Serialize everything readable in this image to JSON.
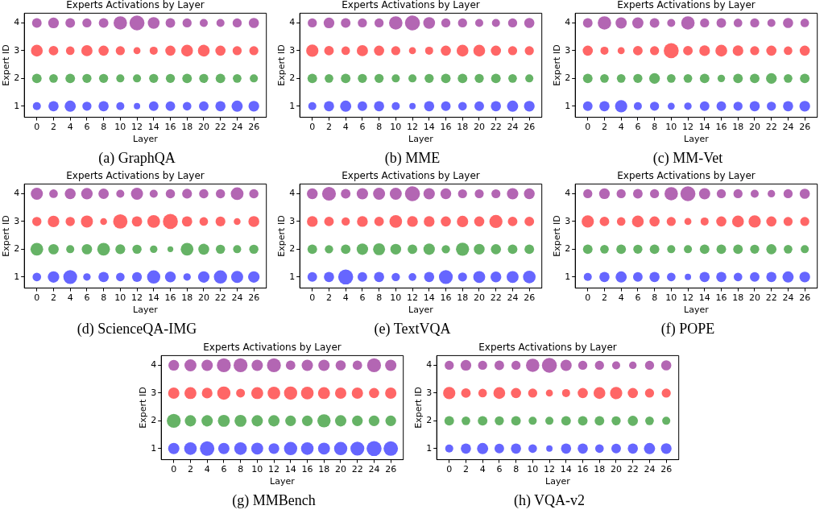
{
  "chart_data": [
    {
      "type": "bubble",
      "title": "Experts Activations by Layer",
      "xlabel": "Layer",
      "ylabel": "Expert ID",
      "annotations": [
        "(a) GraphQA"
      ],
      "x": [
        0,
        2,
        4,
        6,
        8,
        10,
        12,
        14,
        16,
        18,
        20,
        22,
        24,
        26
      ],
      "xlim": [
        -1.5,
        27.5
      ],
      "xticks": [
        0,
        2,
        4,
        6,
        8,
        10,
        12,
        14,
        16,
        18,
        20,
        22,
        24,
        26
      ],
      "ylim": [
        0.6,
        4.35
      ],
      "yticks": [
        1,
        2,
        3,
        4
      ],
      "grid": false,
      "legend": false,
      "series": [
        {
          "color": "#6666ff",
          "values": [
            1,
            1,
            1,
            1,
            1,
            1,
            1,
            1,
            1,
            1,
            1,
            1,
            1,
            1
          ],
          "sizes": [
            0.29,
            0.46,
            0.56,
            0.37,
            0.46,
            0.29,
            0.18,
            0.41,
            0.41,
            0.33,
            0.41,
            0.46,
            0.56,
            0.51
          ]
        },
        {
          "color": "#66b366",
          "values": [
            2,
            2,
            2,
            2,
            2,
            2,
            2,
            2,
            2,
            2,
            2,
            2,
            2,
            2
          ],
          "sizes": [
            0.41,
            0.33,
            0.41,
            0.37,
            0.37,
            0.29,
            0.29,
            0.37,
            0.37,
            0.41,
            0.37,
            0.41,
            0.33,
            0.29
          ]
        },
        {
          "color": "#ff6666",
          "values": [
            3,
            3,
            3,
            3,
            3,
            3,
            3,
            3,
            3,
            3,
            3,
            3,
            3,
            3
          ],
          "sizes": [
            0.62,
            0.41,
            0.33,
            0.56,
            0.46,
            0.37,
            0.22,
            0.29,
            0.46,
            0.62,
            0.62,
            0.46,
            0.37,
            0.37
          ]
        },
        {
          "color": "#b366b3",
          "values": [
            4,
            4,
            4,
            4,
            4,
            4,
            4,
            4,
            4,
            4,
            4,
            4,
            4,
            4
          ],
          "sizes": [
            0.41,
            0.51,
            0.41,
            0.37,
            0.41,
            0.8,
            1,
            0.62,
            0.41,
            0.37,
            0.29,
            0.29,
            0.37,
            0.46
          ]
        }
      ]
    },
    {
      "type": "bubble",
      "title": "Experts Activations by Layer",
      "xlabel": "Layer",
      "ylabel": "Expert ID",
      "annotations": [
        "(b) MME"
      ],
      "x": [
        0,
        2,
        4,
        6,
        8,
        10,
        12,
        14,
        16,
        18,
        20,
        22,
        24,
        26
      ],
      "xlim": [
        -1.5,
        27.5
      ],
      "xticks": [
        0,
        2,
        4,
        6,
        8,
        10,
        12,
        14,
        16,
        18,
        20,
        22,
        24,
        26
      ],
      "ylim": [
        0.6,
        4.35
      ],
      "yticks": [
        1,
        2,
        3,
        4
      ],
      "grid": false,
      "legend": false,
      "series": [
        {
          "color": "#6666ff",
          "values": [
            1,
            1,
            1,
            1,
            1,
            1,
            1,
            1,
            1,
            1,
            1,
            1,
            1,
            1
          ],
          "sizes": [
            0.29,
            0.46,
            0.56,
            0.41,
            0.46,
            0.29,
            0.18,
            0.46,
            0.41,
            0.33,
            0.41,
            0.46,
            0.56,
            0.51
          ]
        },
        {
          "color": "#66b366",
          "values": [
            2,
            2,
            2,
            2,
            2,
            2,
            2,
            2,
            2,
            2,
            2,
            2,
            2,
            2
          ],
          "sizes": [
            0.41,
            0.33,
            0.41,
            0.37,
            0.37,
            0.29,
            0.29,
            0.37,
            0.41,
            0.41,
            0.37,
            0.41,
            0.33,
            0.29
          ]
        },
        {
          "color": "#ff6666",
          "values": [
            3,
            3,
            3,
            3,
            3,
            3,
            3,
            3,
            3,
            3,
            3,
            3,
            3,
            3
          ],
          "sizes": [
            0.67,
            0.41,
            0.33,
            0.56,
            0.46,
            0.37,
            0.22,
            0.29,
            0.46,
            0.62,
            0.62,
            0.46,
            0.37,
            0.37
          ]
        },
        {
          "color": "#b366b3",
          "values": [
            4,
            4,
            4,
            4,
            4,
            4,
            4,
            4,
            4,
            4,
            4,
            4,
            4,
            4
          ],
          "sizes": [
            0.37,
            0.51,
            0.41,
            0.37,
            0.37,
            0.8,
            1,
            0.62,
            0.37,
            0.37,
            0.29,
            0.29,
            0.37,
            0.46
          ]
        }
      ]
    },
    {
      "type": "bubble",
      "title": "Experts Activations by Layer",
      "xlabel": "Layer",
      "ylabel": "Expert ID",
      "annotations": [
        "(c) MM-Vet"
      ],
      "x": [
        0,
        2,
        4,
        6,
        8,
        10,
        12,
        14,
        16,
        18,
        20,
        22,
        24,
        26
      ],
      "xlim": [
        -1.5,
        27.5
      ],
      "xticks": [
        0,
        2,
        4,
        6,
        8,
        10,
        12,
        14,
        16,
        18,
        20,
        22,
        24,
        26
      ],
      "ylim": [
        0.6,
        4.35
      ],
      "yticks": [
        1,
        2,
        3,
        4
      ],
      "grid": false,
      "legend": false,
      "series": [
        {
          "color": "#6666ff",
          "values": [
            1,
            1,
            1,
            1,
            1,
            1,
            1,
            1,
            1,
            1,
            1,
            1,
            1,
            1
          ],
          "sizes": [
            0.41,
            0.46,
            0.67,
            0.29,
            0.37,
            0.22,
            0.25,
            0.41,
            0.41,
            0.37,
            0.46,
            0.37,
            0.46,
            0.51
          ]
        },
        {
          "color": "#66b366",
          "values": [
            2,
            2,
            2,
            2,
            2,
            2,
            2,
            2,
            2,
            2,
            2,
            2,
            2,
            2
          ],
          "sizes": [
            0.41,
            0.33,
            0.33,
            0.37,
            0.51,
            0.33,
            0.33,
            0.41,
            0.25,
            0.41,
            0.41,
            0.51,
            0.33,
            0.41
          ]
        },
        {
          "color": "#ff6666",
          "values": [
            3,
            3,
            3,
            3,
            3,
            3,
            3,
            3,
            3,
            3,
            3,
            3,
            3,
            3
          ],
          "sizes": [
            0.46,
            0.29,
            0.22,
            0.41,
            0.37,
            1,
            0.41,
            0.51,
            0.62,
            0.51,
            0.37,
            0.46,
            0.33,
            0.46
          ]
        },
        {
          "color": "#b366b3",
          "values": [
            4,
            4,
            4,
            4,
            4,
            4,
            4,
            4,
            4,
            4,
            4,
            4,
            4,
            4
          ],
          "sizes": [
            0.41,
            0.8,
            0.56,
            0.56,
            0.41,
            0.29,
            0.8,
            0.37,
            0.41,
            0.33,
            0.37,
            0.29,
            0.46,
            0.33
          ]
        }
      ]
    },
    {
      "type": "bubble",
      "title": "Experts Activations by Layer",
      "xlabel": "Layer",
      "ylabel": "Expert ID",
      "annotations": [
        "(d) ScienceQA-IMG"
      ],
      "x": [
        0,
        2,
        4,
        6,
        8,
        10,
        12,
        14,
        16,
        18,
        20,
        22,
        24,
        26
      ],
      "xlim": [
        -1.5,
        27.5
      ],
      "xticks": [
        0,
        2,
        4,
        6,
        8,
        10,
        12,
        14,
        16,
        18,
        20,
        22,
        24,
        26
      ],
      "ylim": [
        0.6,
        4.35
      ],
      "yticks": [
        1,
        2,
        3,
        4
      ],
      "grid": false,
      "legend": false,
      "series": [
        {
          "color": "#6666ff",
          "values": [
            1,
            1,
            1,
            1,
            1,
            1,
            1,
            1,
            1,
            1,
            1,
            1,
            1,
            1
          ],
          "sizes": [
            0.33,
            0.59,
            0.85,
            0.25,
            0.48,
            0.33,
            0.43,
            0.78,
            0.53,
            0.25,
            0.59,
            0.78,
            0.65,
            0.59
          ]
        },
        {
          "color": "#66b366",
          "values": [
            2,
            2,
            2,
            2,
            2,
            2,
            2,
            2,
            2,
            2,
            2,
            2,
            2,
            2
          ],
          "sizes": [
            0.72,
            0.48,
            0.29,
            0.48,
            0.72,
            0.43,
            0.38,
            0.25,
            0.15,
            0.72,
            0.53,
            0.38,
            0.29,
            0.38
          ]
        },
        {
          "color": "#ff6666",
          "values": [
            3,
            3,
            3,
            3,
            3,
            3,
            3,
            3,
            3,
            3,
            3,
            3,
            3,
            3
          ],
          "sizes": [
            0.38,
            0.59,
            0.38,
            0.65,
            0.21,
            0.92,
            0.48,
            0.72,
            1,
            0.48,
            0.33,
            0.43,
            0.21,
            0.53
          ]
        },
        {
          "color": "#b366b3",
          "values": [
            4,
            4,
            4,
            4,
            4,
            4,
            4,
            4,
            4,
            4,
            4,
            4,
            4,
            4
          ],
          "sizes": [
            0.65,
            0.33,
            0.53,
            0.59,
            0.48,
            0.29,
            0.65,
            0.29,
            0.38,
            0.43,
            0.38,
            0.38,
            0.72,
            0.38
          ]
        }
      ]
    },
    {
      "type": "bubble",
      "title": "Experts Activations by Layer",
      "xlabel": "Layer",
      "ylabel": "Expert ID",
      "annotations": [
        "(e) TextVQA"
      ],
      "x": [
        0,
        2,
        4,
        6,
        8,
        10,
        12,
        14,
        16,
        18,
        20,
        22,
        24,
        26
      ],
      "xlim": [
        -1.5,
        27.5
      ],
      "xticks": [
        0,
        2,
        4,
        6,
        8,
        10,
        12,
        14,
        16,
        18,
        20,
        22,
        24,
        26
      ],
      "ylim": [
        0.6,
        4.35
      ],
      "yticks": [
        1,
        2,
        3,
        4
      ],
      "grid": false,
      "legend": false,
      "series": [
        {
          "color": "#6666ff",
          "values": [
            1,
            1,
            1,
            1,
            1,
            1,
            1,
            1,
            1,
            1,
            1,
            1,
            1,
            1
          ],
          "sizes": [
            0.41,
            0.46,
            1,
            0.41,
            0.46,
            0.31,
            0.27,
            0.46,
            0.85,
            0.36,
            0.64,
            0.52,
            0.64,
            0.71
          ]
        },
        {
          "color": "#66b366",
          "values": [
            2,
            2,
            2,
            2,
            2,
            2,
            2,
            2,
            2,
            2,
            2,
            2,
            2,
            2
          ],
          "sizes": [
            0.41,
            0.31,
            0.41,
            0.58,
            0.64,
            0.52,
            0.41,
            0.58,
            0.31,
            0.77,
            0.52,
            0.46,
            0.41,
            0.41
          ]
        },
        {
          "color": "#ff6666",
          "values": [
            3,
            3,
            3,
            3,
            3,
            3,
            3,
            3,
            3,
            3,
            3,
            3,
            3,
            3
          ],
          "sizes": [
            0.52,
            0.41,
            0.31,
            0.52,
            0.41,
            0.71,
            0.52,
            0.52,
            0.46,
            0.58,
            0.46,
            0.77,
            0.41,
            0.41
          ]
        },
        {
          "color": "#b366b3",
          "values": [
            4,
            4,
            4,
            4,
            4,
            4,
            4,
            4,
            4,
            4,
            4,
            4,
            4,
            4
          ],
          "sizes": [
            0.52,
            0.85,
            0.41,
            0.58,
            0.64,
            0.64,
            1,
            0.58,
            0.52,
            0.36,
            0.36,
            0.36,
            0.58,
            0.52
          ]
        }
      ]
    },
    {
      "type": "bubble",
      "title": "Experts Activations by Layer",
      "xlabel": "Layer",
      "ylabel": "Expert ID",
      "annotations": [
        "(f) POPE"
      ],
      "x": [
        0,
        2,
        4,
        6,
        8,
        10,
        12,
        14,
        16,
        18,
        20,
        22,
        24,
        26
      ],
      "xlim": [
        -1.5,
        27.5
      ],
      "xticks": [
        0,
        2,
        4,
        6,
        8,
        10,
        12,
        14,
        16,
        18,
        20,
        22,
        24,
        26
      ],
      "ylim": [
        0.6,
        4.35
      ],
      "yticks": [
        1,
        2,
        3,
        4
      ],
      "grid": false,
      "legend": false,
      "series": [
        {
          "color": "#6666ff",
          "values": [
            1,
            1,
            1,
            1,
            1,
            1,
            1,
            1,
            1,
            1,
            1,
            1,
            1,
            1
          ],
          "sizes": [
            0.29,
            0.46,
            0.56,
            0.41,
            0.46,
            0.33,
            0.18,
            0.46,
            0.46,
            0.33,
            0.41,
            0.46,
            0.56,
            0.51
          ]
        },
        {
          "color": "#66b366",
          "values": [
            2,
            2,
            2,
            2,
            2,
            2,
            2,
            2,
            2,
            2,
            2,
            2,
            2,
            2
          ],
          "sizes": [
            0.41,
            0.33,
            0.41,
            0.37,
            0.41,
            0.29,
            0.29,
            0.41,
            0.41,
            0.41,
            0.37,
            0.46,
            0.33,
            0.29
          ]
        },
        {
          "color": "#ff6666",
          "values": [
            3,
            3,
            3,
            3,
            3,
            3,
            3,
            3,
            3,
            3,
            3,
            3,
            3,
            3
          ],
          "sizes": [
            0.67,
            0.41,
            0.33,
            0.62,
            0.46,
            0.37,
            0.22,
            0.29,
            0.46,
            0.62,
            0.67,
            0.46,
            0.37,
            0.37
          ]
        },
        {
          "color": "#b366b3",
          "values": [
            4,
            4,
            4,
            4,
            4,
            4,
            4,
            4,
            4,
            4,
            4,
            4,
            4,
            4
          ],
          "sizes": [
            0.37,
            0.51,
            0.37,
            0.41,
            0.37,
            0.8,
            1,
            0.56,
            0.37,
            0.37,
            0.29,
            0.25,
            0.37,
            0.46
          ]
        }
      ]
    },
    {
      "type": "bubble",
      "title": "Experts Activations by Layer",
      "xlabel": "Layer",
      "ylabel": "Expert ID",
      "annotations": [
        "(g) MMBench"
      ],
      "x": [
        0,
        2,
        4,
        6,
        8,
        10,
        12,
        14,
        16,
        18,
        20,
        22,
        24,
        26
      ],
      "xlim": [
        -1.5,
        27.5
      ],
      "xticks": [
        0,
        2,
        4,
        6,
        8,
        10,
        12,
        14,
        16,
        18,
        20,
        22,
        24,
        26
      ],
      "ylim": [
        0.6,
        4.35
      ],
      "yticks": [
        1,
        2,
        3,
        4
      ],
      "grid": false,
      "legend": false,
      "series": [
        {
          "color": "#6666ff",
          "values": [
            1,
            1,
            1,
            1,
            1,
            1,
            1,
            1,
            1,
            1,
            1,
            1,
            1,
            1
          ],
          "sizes": [
            0.57,
            0.71,
            0.93,
            0.57,
            0.71,
            0.64,
            0.51,
            0.78,
            0.71,
            0.64,
            0.78,
            0.86,
            1,
            0.93
          ]
        },
        {
          "color": "#66b366",
          "values": [
            2,
            2,
            2,
            2,
            2,
            2,
            2,
            2,
            2,
            2,
            2,
            2,
            2,
            2
          ],
          "sizes": [
            0.86,
            0.57,
            0.57,
            0.64,
            0.64,
            0.57,
            0.57,
            0.51,
            0.51,
            0.78,
            0.57,
            0.51,
            0.51,
            0.51
          ]
        },
        {
          "color": "#ff6666",
          "values": [
            3,
            3,
            3,
            3,
            3,
            3,
            3,
            3,
            3,
            3,
            3,
            3,
            3,
            3
          ],
          "sizes": [
            0.57,
            0.64,
            0.51,
            0.78,
            0.35,
            0.64,
            0.71,
            0.78,
            0.71,
            0.64,
            0.57,
            0.57,
            0.46,
            0.57
          ]
        },
        {
          "color": "#b366b3",
          "values": [
            4,
            4,
            4,
            4,
            4,
            4,
            4,
            4,
            4,
            4,
            4,
            4,
            4,
            4
          ],
          "sizes": [
            0.51,
            0.64,
            0.57,
            0.86,
            0.86,
            0.57,
            0.86,
            0.4,
            0.57,
            0.57,
            0.46,
            0.4,
            0.86,
            0.57
          ]
        }
      ]
    },
    {
      "type": "bubble",
      "title": "Experts Activations by Layer",
      "xlabel": "Layer",
      "ylabel": "Expert ID",
      "annotations": [
        "(h) VQA-v2"
      ],
      "x": [
        0,
        2,
        4,
        6,
        8,
        10,
        12,
        14,
        16,
        18,
        20,
        22,
        24,
        26
      ],
      "xlim": [
        -1.5,
        27.5
      ],
      "xticks": [
        0,
        2,
        4,
        6,
        8,
        10,
        12,
        14,
        16,
        18,
        20,
        22,
        24,
        26
      ],
      "ylim": [
        0.6,
        4.35
      ],
      "yticks": [
        1,
        2,
        3,
        4
      ],
      "grid": false,
      "legend": false,
      "series": [
        {
          "color": "#6666ff",
          "values": [
            1,
            1,
            1,
            1,
            1,
            1,
            1,
            1,
            1,
            1,
            1,
            1,
            1,
            1
          ],
          "sizes": [
            0.29,
            0.46,
            0.56,
            0.41,
            0.46,
            0.33,
            0.18,
            0.46,
            0.46,
            0.33,
            0.41,
            0.46,
            0.56,
            0.51
          ]
        },
        {
          "color": "#66b366",
          "values": [
            2,
            2,
            2,
            2,
            2,
            2,
            2,
            2,
            2,
            2,
            2,
            2,
            2,
            2
          ],
          "sizes": [
            0.41,
            0.33,
            0.41,
            0.37,
            0.41,
            0.29,
            0.29,
            0.41,
            0.41,
            0.41,
            0.37,
            0.46,
            0.33,
            0.29
          ]
        },
        {
          "color": "#ff6666",
          "values": [
            3,
            3,
            3,
            3,
            3,
            3,
            3,
            3,
            3,
            3,
            3,
            3,
            3,
            3
          ],
          "sizes": [
            0.67,
            0.41,
            0.33,
            0.62,
            0.46,
            0.37,
            0.22,
            0.29,
            0.46,
            0.62,
            0.67,
            0.46,
            0.37,
            0.37
          ]
        },
        {
          "color": "#b366b3",
          "values": [
            4,
            4,
            4,
            4,
            4,
            4,
            4,
            4,
            4,
            4,
            4,
            4,
            4,
            4
          ],
          "sizes": [
            0.37,
            0.51,
            0.37,
            0.41,
            0.37,
            0.8,
            1,
            0.56,
            0.37,
            0.37,
            0.29,
            0.25,
            0.37,
            0.46
          ]
        }
      ]
    }
  ]
}
